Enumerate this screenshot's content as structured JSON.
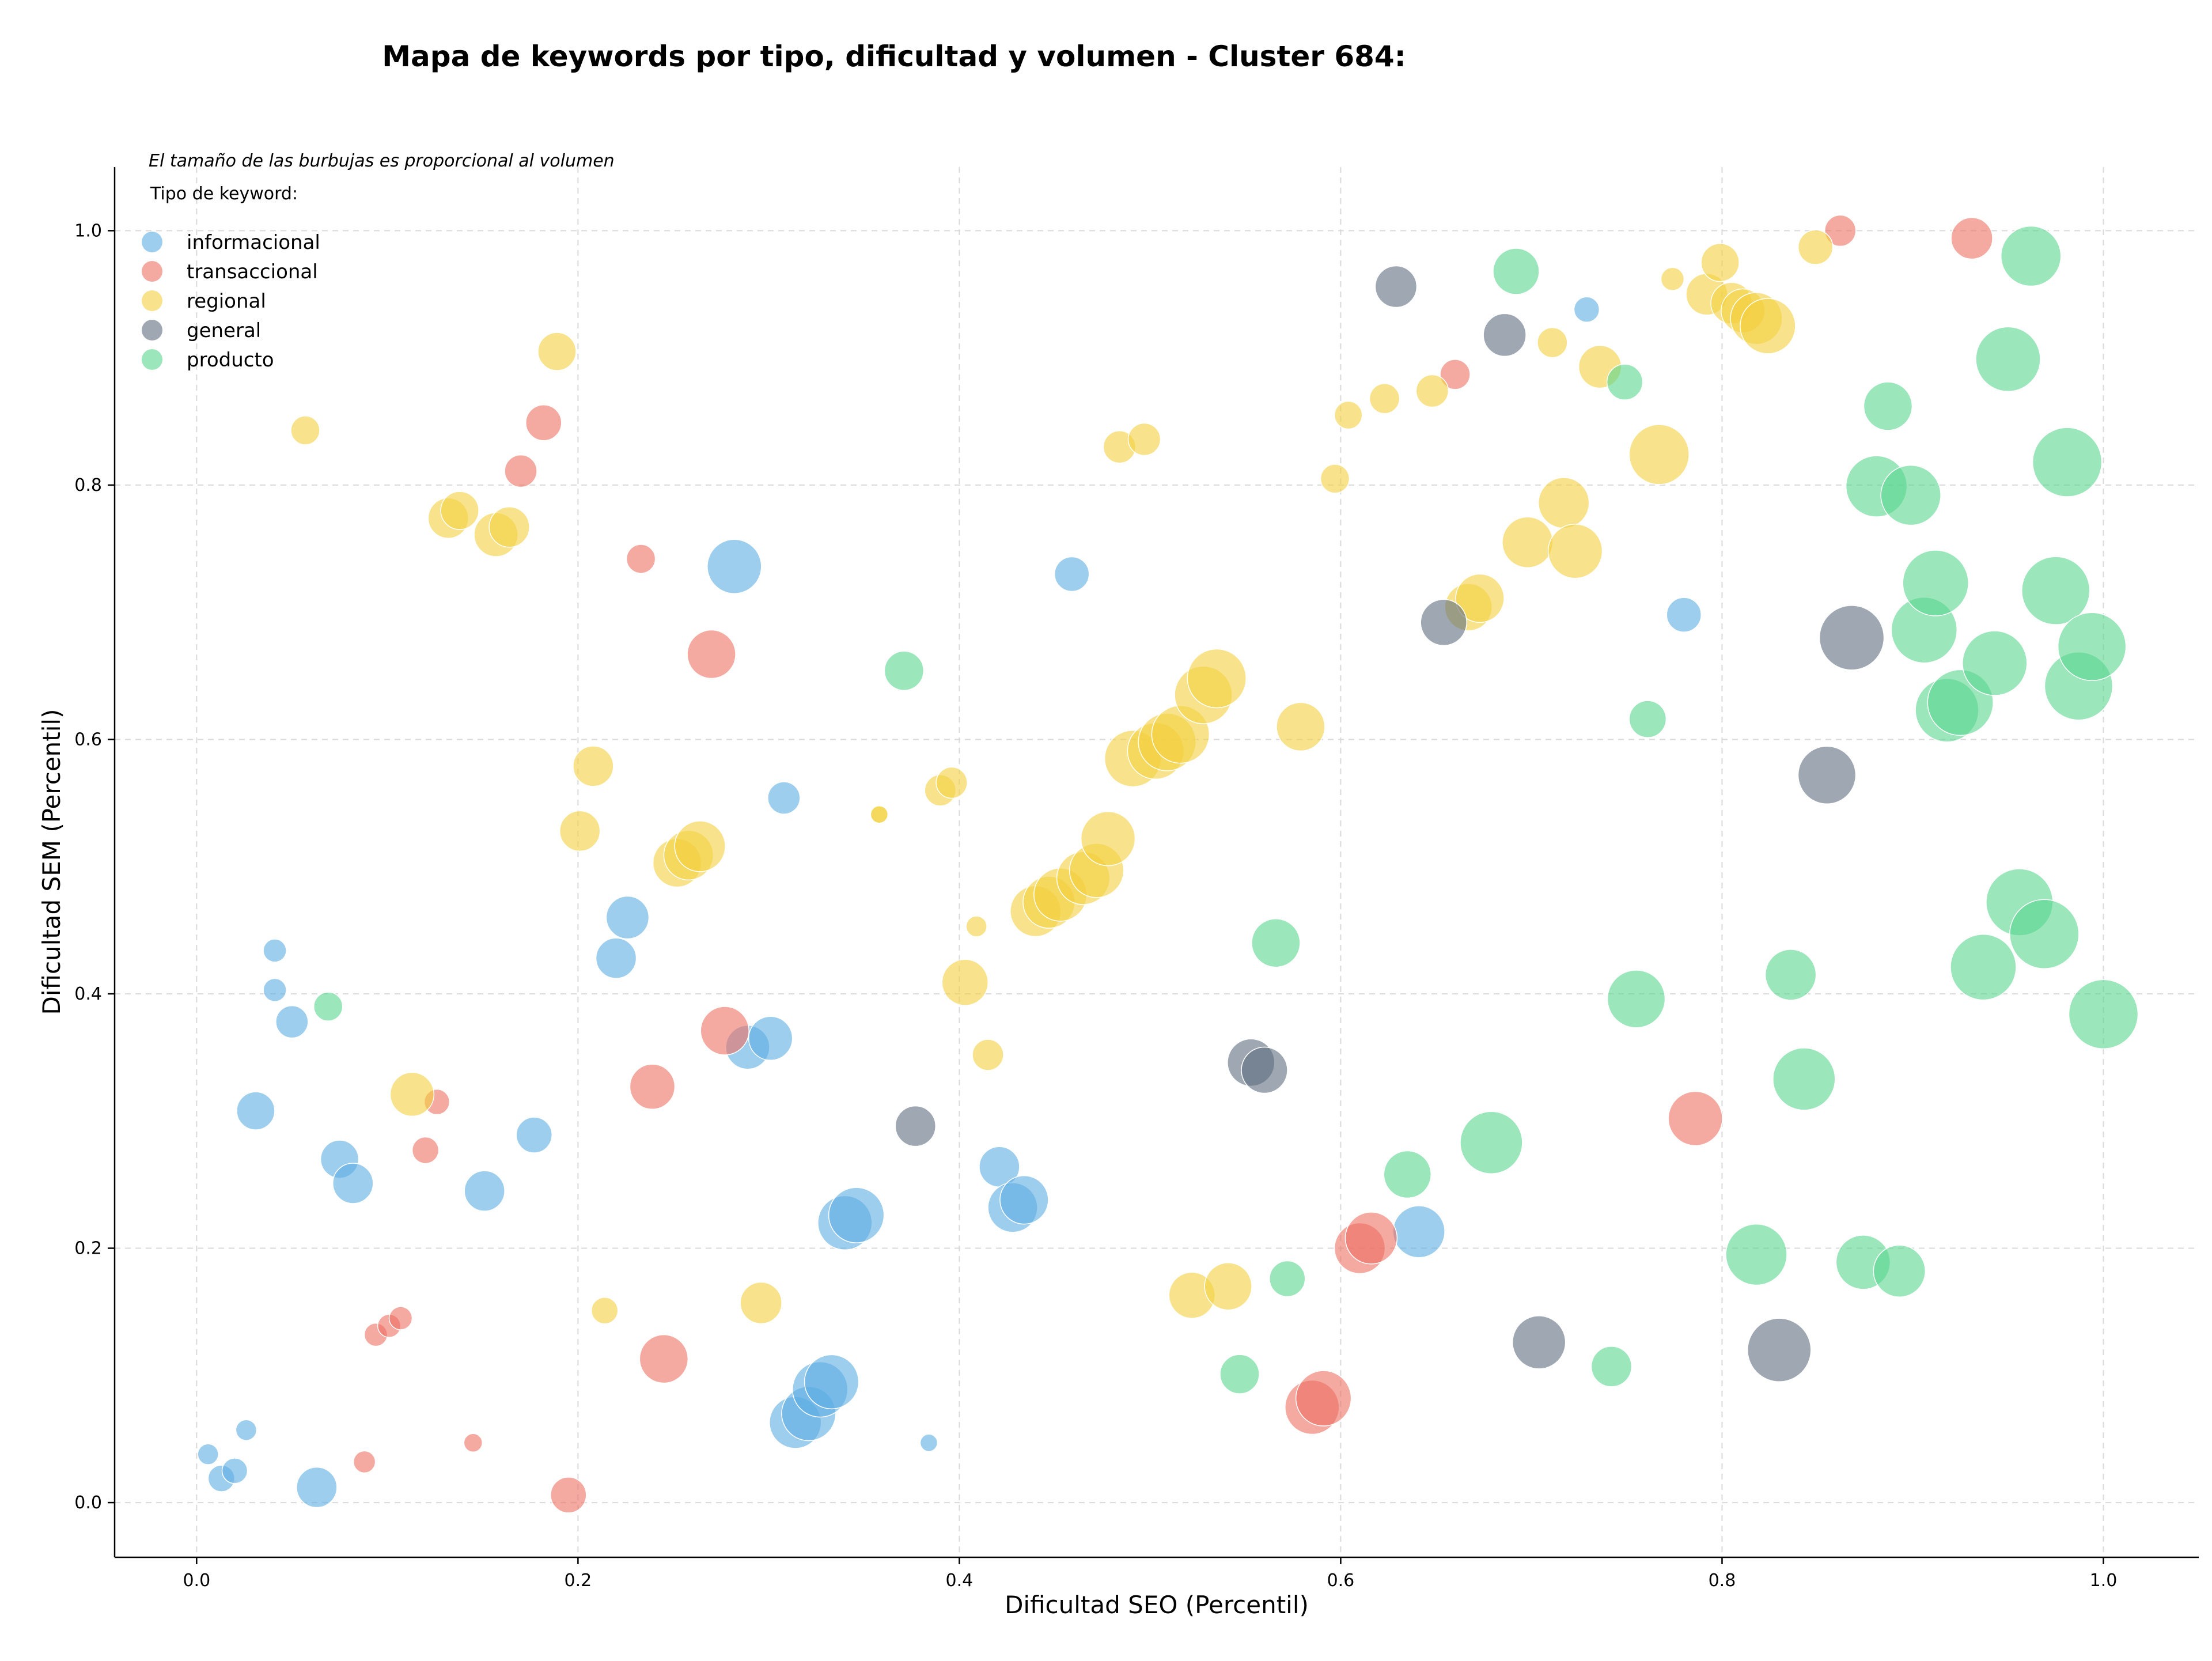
{
  "chart_data": {
    "type": "scatter",
    "title": "Mapa de keywords por tipo, dificultad y volumen - Cluster 684:",
    "xlabel": "Dificultad SEO (Percentil)",
    "ylabel": "Dificultad SEM (Percentil)",
    "xlim": [
      -0.043,
      1.05
    ],
    "ylim": [
      -0.043,
      1.05
    ],
    "xticks": [
      "0.0",
      "0.2",
      "0.4",
      "0.6",
      "0.8",
      "1.0"
    ],
    "yticks": [
      "0.0",
      "0.2",
      "0.4",
      "0.6",
      "0.8",
      "1.0"
    ],
    "grid": true,
    "size_note": "El tamaño de las burbujas es proporcional al volumen",
    "legend_title": "Tipo de keyword:",
    "legend_position": "top-left",
    "series": [
      {
        "name": "informacional",
        "color": "#5DADE2",
        "points": [
          {
            "x": 0.006,
            "y": 0.038,
            "r": 18
          },
          {
            "x": 0.013,
            "y": 0.019,
            "r": 23
          },
          {
            "x": 0.02,
            "y": 0.025,
            "r": 22
          },
          {
            "x": 0.026,
            "y": 0.057,
            "r": 18
          },
          {
            "x": 0.031,
            "y": 0.308,
            "r": 33
          },
          {
            "x": 0.041,
            "y": 0.434,
            "r": 20
          },
          {
            "x": 0.041,
            "y": 0.403,
            "r": 20
          },
          {
            "x": 0.05,
            "y": 0.378,
            "r": 28
          },
          {
            "x": 0.063,
            "y": 0.012,
            "r": 35
          },
          {
            "x": 0.075,
            "y": 0.27,
            "r": 33
          },
          {
            "x": 0.082,
            "y": 0.251,
            "r": 35
          },
          {
            "x": 0.151,
            "y": 0.245,
            "r": 35
          },
          {
            "x": 0.177,
            "y": 0.289,
            "r": 31
          },
          {
            "x": 0.22,
            "y": 0.428,
            "r": 35
          },
          {
            "x": 0.226,
            "y": 0.46,
            "r": 37
          },
          {
            "x": 0.282,
            "y": 0.736,
            "r": 47
          },
          {
            "x": 0.289,
            "y": 0.358,
            "r": 38
          },
          {
            "x": 0.301,
            "y": 0.365,
            "r": 38
          },
          {
            "x": 0.308,
            "y": 0.554,
            "r": 28
          },
          {
            "x": 0.314,
            "y": 0.063,
            "r": 45
          },
          {
            "x": 0.321,
            "y": 0.07,
            "r": 47
          },
          {
            "x": 0.327,
            "y": 0.089,
            "r": 48
          },
          {
            "x": 0.333,
            "y": 0.095,
            "r": 47
          },
          {
            "x": 0.34,
            "y": 0.22,
            "r": 47
          },
          {
            "x": 0.346,
            "y": 0.226,
            "r": 48
          },
          {
            "x": 0.384,
            "y": 0.047,
            "r": 15
          },
          {
            "x": 0.421,
            "y": 0.264,
            "r": 35
          },
          {
            "x": 0.428,
            "y": 0.232,
            "r": 43
          },
          {
            "x": 0.434,
            "y": 0.238,
            "r": 42
          },
          {
            "x": 0.459,
            "y": 0.73,
            "r": 30
          },
          {
            "x": 0.641,
            "y": 0.213,
            "r": 45
          },
          {
            "x": 0.729,
            "y": 0.938,
            "r": 22
          },
          {
            "x": 0.78,
            "y": 0.698,
            "r": 30
          }
        ]
      },
      {
        "name": "transaccional",
        "color": "#EC7063",
        "points": [
          {
            "x": 0.088,
            "y": 0.032,
            "r": 19
          },
          {
            "x": 0.094,
            "y": 0.132,
            "r": 20
          },
          {
            "x": 0.101,
            "y": 0.139,
            "r": 20
          },
          {
            "x": 0.107,
            "y": 0.145,
            "r": 20
          },
          {
            "x": 0.12,
            "y": 0.277,
            "r": 23
          },
          {
            "x": 0.126,
            "y": 0.315,
            "r": 22
          },
          {
            "x": 0.145,
            "y": 0.047,
            "r": 16
          },
          {
            "x": 0.17,
            "y": 0.811,
            "r": 28
          },
          {
            "x": 0.182,
            "y": 0.849,
            "r": 31
          },
          {
            "x": 0.195,
            "y": 0.006,
            "r": 31
          },
          {
            "x": 0.233,
            "y": 0.742,
            "r": 25
          },
          {
            "x": 0.239,
            "y": 0.327,
            "r": 39
          },
          {
            "x": 0.245,
            "y": 0.113,
            "r": 42
          },
          {
            "x": 0.27,
            "y": 0.667,
            "r": 42
          },
          {
            "x": 0.277,
            "y": 0.371,
            "r": 42
          },
          {
            "x": 0.585,
            "y": 0.075,
            "r": 47
          },
          {
            "x": 0.591,
            "y": 0.082,
            "r": 48
          },
          {
            "x": 0.61,
            "y": 0.2,
            "r": 44
          },
          {
            "x": 0.616,
            "y": 0.208,
            "r": 45
          },
          {
            "x": 0.66,
            "y": 0.887,
            "r": 26
          },
          {
            "x": 0.786,
            "y": 0.302,
            "r": 47
          },
          {
            "x": 0.862,
            "y": 1.0,
            "r": 27
          },
          {
            "x": 0.931,
            "y": 0.994,
            "r": 36
          }
        ]
      },
      {
        "name": "regional",
        "color": "#F4D03F",
        "points": [
          {
            "x": 0.057,
            "y": 0.843,
            "r": 25
          },
          {
            "x": 0.113,
            "y": 0.321,
            "r": 38
          },
          {
            "x": 0.132,
            "y": 0.774,
            "r": 35
          },
          {
            "x": 0.138,
            "y": 0.78,
            "r": 33
          },
          {
            "x": 0.157,
            "y": 0.761,
            "r": 38
          },
          {
            "x": 0.164,
            "y": 0.767,
            "r": 35
          },
          {
            "x": 0.189,
            "y": 0.905,
            "r": 33
          },
          {
            "x": 0.201,
            "y": 0.528,
            "r": 35
          },
          {
            "x": 0.208,
            "y": 0.579,
            "r": 35
          },
          {
            "x": 0.214,
            "y": 0.151,
            "r": 23
          },
          {
            "x": 0.252,
            "y": 0.503,
            "r": 42
          },
          {
            "x": 0.258,
            "y": 0.509,
            "r": 43
          },
          {
            "x": 0.264,
            "y": 0.516,
            "r": 44
          },
          {
            "x": 0.296,
            "y": 0.157,
            "r": 36
          },
          {
            "x": 0.358,
            "y": 0.541,
            "r": 15
          },
          {
            "x": 0.358,
            "y": 0.541,
            "r": 15
          },
          {
            "x": 0.39,
            "y": 0.56,
            "r": 27
          },
          {
            "x": 0.396,
            "y": 0.566,
            "r": 27
          },
          {
            "x": 0.403,
            "y": 0.409,
            "r": 40
          },
          {
            "x": 0.409,
            "y": 0.453,
            "r": 18
          },
          {
            "x": 0.415,
            "y": 0.352,
            "r": 27
          },
          {
            "x": 0.44,
            "y": 0.465,
            "r": 44
          },
          {
            "x": 0.447,
            "y": 0.472,
            "r": 45
          },
          {
            "x": 0.453,
            "y": 0.478,
            "r": 46
          },
          {
            "x": 0.465,
            "y": 0.491,
            "r": 46
          },
          {
            "x": 0.472,
            "y": 0.497,
            "r": 47
          },
          {
            "x": 0.478,
            "y": 0.522,
            "r": 47
          },
          {
            "x": 0.484,
            "y": 0.83,
            "r": 28
          },
          {
            "x": 0.497,
            "y": 0.836,
            "r": 28
          },
          {
            "x": 0.491,
            "y": 0.585,
            "r": 49
          },
          {
            "x": 0.503,
            "y": 0.591,
            "r": 49
          },
          {
            "x": 0.509,
            "y": 0.598,
            "r": 50
          },
          {
            "x": 0.516,
            "y": 0.604,
            "r": 50
          },
          {
            "x": 0.528,
            "y": 0.635,
            "r": 50
          },
          {
            "x": 0.535,
            "y": 0.648,
            "r": 51
          },
          {
            "x": 0.522,
            "y": 0.163,
            "r": 40
          },
          {
            "x": 0.541,
            "y": 0.17,
            "r": 41
          },
          {
            "x": 0.579,
            "y": 0.61,
            "r": 42
          },
          {
            "x": 0.597,
            "y": 0.805,
            "r": 25
          },
          {
            "x": 0.604,
            "y": 0.855,
            "r": 24
          },
          {
            "x": 0.623,
            "y": 0.868,
            "r": 26
          },
          {
            "x": 0.648,
            "y": 0.874,
            "r": 28
          },
          {
            "x": 0.667,
            "y": 0.704,
            "r": 41
          },
          {
            "x": 0.673,
            "y": 0.711,
            "r": 42
          },
          {
            "x": 0.698,
            "y": 0.755,
            "r": 44
          },
          {
            "x": 0.711,
            "y": 0.912,
            "r": 26
          },
          {
            "x": 0.717,
            "y": 0.786,
            "r": 44
          },
          {
            "x": 0.723,
            "y": 0.748,
            "r": 47
          },
          {
            "x": 0.736,
            "y": 0.893,
            "r": 37
          },
          {
            "x": 0.767,
            "y": 0.824,
            "r": 52
          },
          {
            "x": 0.774,
            "y": 0.962,
            "r": 20
          },
          {
            "x": 0.792,
            "y": 0.95,
            "r": 36
          },
          {
            "x": 0.799,
            "y": 0.975,
            "r": 33
          },
          {
            "x": 0.805,
            "y": 0.943,
            "r": 36
          },
          {
            "x": 0.811,
            "y": 0.937,
            "r": 38
          },
          {
            "x": 0.818,
            "y": 0.931,
            "r": 45
          },
          {
            "x": 0.824,
            "y": 0.925,
            "r": 48
          },
          {
            "x": 0.849,
            "y": 0.987,
            "r": 30
          }
        ]
      },
      {
        "name": "general",
        "color": "#5D6D7E",
        "points": [
          {
            "x": 0.377,
            "y": 0.296,
            "r": 35
          },
          {
            "x": 0.553,
            "y": 0.346,
            "r": 41
          },
          {
            "x": 0.56,
            "y": 0.34,
            "r": 40
          },
          {
            "x": 0.629,
            "y": 0.956,
            "r": 36
          },
          {
            "x": 0.654,
            "y": 0.692,
            "r": 40
          },
          {
            "x": 0.686,
            "y": 0.918,
            "r": 37
          },
          {
            "x": 0.704,
            "y": 0.126,
            "r": 46
          },
          {
            "x": 0.83,
            "y": 0.12,
            "r": 55
          },
          {
            "x": 0.855,
            "y": 0.572,
            "r": 50
          },
          {
            "x": 0.868,
            "y": 0.68,
            "r": 56
          }
        ]
      },
      {
        "name": "producto",
        "color": "#58D68D",
        "points": [
          {
            "x": 0.069,
            "y": 0.39,
            "r": 25
          },
          {
            "x": 0.371,
            "y": 0.654,
            "r": 34
          },
          {
            "x": 0.547,
            "y": 0.101,
            "r": 34
          },
          {
            "x": 0.566,
            "y": 0.44,
            "r": 42
          },
          {
            "x": 0.572,
            "y": 0.176,
            "r": 31
          },
          {
            "x": 0.635,
            "y": 0.258,
            "r": 41
          },
          {
            "x": 0.679,
            "y": 0.283,
            "r": 54
          },
          {
            "x": 0.692,
            "y": 0.968,
            "r": 40
          },
          {
            "x": 0.742,
            "y": 0.107,
            "r": 35
          },
          {
            "x": 0.749,
            "y": 0.881,
            "r": 31
          },
          {
            "x": 0.755,
            "y": 0.396,
            "r": 50
          },
          {
            "x": 0.761,
            "y": 0.616,
            "r": 32
          },
          {
            "x": 0.818,
            "y": 0.195,
            "r": 53
          },
          {
            "x": 0.836,
            "y": 0.415,
            "r": 44
          },
          {
            "x": 0.843,
            "y": 0.333,
            "r": 54
          },
          {
            "x": 0.874,
            "y": 0.189,
            "r": 47
          },
          {
            "x": 0.881,
            "y": 0.799,
            "r": 53
          },
          {
            "x": 0.887,
            "y": 0.862,
            "r": 42
          },
          {
            "x": 0.893,
            "y": 0.182,
            "r": 45
          },
          {
            "x": 0.899,
            "y": 0.792,
            "r": 52
          },
          {
            "x": 0.906,
            "y": 0.686,
            "r": 57
          },
          {
            "x": 0.912,
            "y": 0.723,
            "r": 57
          },
          {
            "x": 0.918,
            "y": 0.623,
            "r": 55
          },
          {
            "x": 0.925,
            "y": 0.629,
            "r": 57
          },
          {
            "x": 0.937,
            "y": 0.421,
            "r": 57
          },
          {
            "x": 0.943,
            "y": 0.66,
            "r": 56
          },
          {
            "x": 0.95,
            "y": 0.899,
            "r": 56
          },
          {
            "x": 0.956,
            "y": 0.472,
            "r": 58
          },
          {
            "x": 0.962,
            "y": 0.98,
            "r": 52
          },
          {
            "x": 0.969,
            "y": 0.447,
            "r": 60
          },
          {
            "x": 0.975,
            "y": 0.717,
            "r": 59
          },
          {
            "x": 0.981,
            "y": 0.818,
            "r": 60
          },
          {
            "x": 0.987,
            "y": 0.642,
            "r": 59
          },
          {
            "x": 0.994,
            "y": 0.673,
            "r": 59
          },
          {
            "x": 1.0,
            "y": 0.384,
            "r": 60
          }
        ]
      }
    ]
  }
}
